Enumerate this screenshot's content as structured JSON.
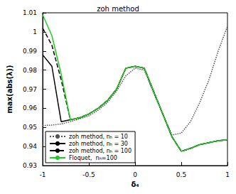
{
  "chart_data": {
    "type": "line",
    "title": "zoh method",
    "x_label": "δ₄",
    "y_label": "max(abs(λ))",
    "x": [
      -1,
      -0.9,
      -0.8,
      -0.7,
      -0.6,
      -0.5,
      -0.4,
      -0.3,
      -0.2,
      -0.1,
      0,
      0.1,
      0.2,
      0.3,
      0.4,
      0.5,
      0.6,
      0.7,
      0.8,
      0.9,
      1
    ],
    "series": [
      {
        "name": "zoh method, nₕ = 10",
        "color": "#555555",
        "line_style": "dotted",
        "values": [
          0.951,
          0.9512,
          0.9518,
          0.953,
          0.9545,
          0.956,
          0.959,
          0.963,
          0.969,
          0.977,
          0.981,
          0.98,
          0.968,
          0.957,
          0.946,
          0.947,
          0.953,
          0.963,
          0.975,
          0.99,
          1.003
        ]
      },
      {
        "name": "zoh method, nₕ = 30",
        "color": "#000000",
        "line_style": "solid",
        "values": [
          0.988,
          0.982,
          0.953,
          0.954,
          0.955,
          0.957,
          0.96,
          0.964,
          0.97,
          0.981,
          0.982,
          0.981,
          0.969,
          0.957,
          0.945,
          0.9375,
          0.939,
          0.941,
          0.942,
          0.943,
          0.9435
        ]
      },
      {
        "name": "zoh method, nₕ = 100",
        "color": "#000000",
        "line_style": "dashed",
        "values": [
          1.002,
          0.993,
          0.975,
          0.954,
          0.955,
          0.957,
          0.96,
          0.964,
          0.97,
          0.981,
          0.982,
          0.981,
          0.969,
          0.957,
          0.945,
          0.9375,
          0.939,
          0.941,
          0.942,
          0.943,
          0.9435
        ]
      },
      {
        "name": "Floquet,  nₕ=100",
        "color": "#22cc22",
        "line_style": "solid",
        "values": [
          1.009,
          0.998,
          0.978,
          0.954,
          0.955,
          0.957,
          0.96,
          0.964,
          0.97,
          0.981,
          0.982,
          0.981,
          0.969,
          0.957,
          0.945,
          0.9375,
          0.939,
          0.941,
          0.942,
          0.943,
          0.9435
        ]
      }
    ],
    "xlim": [
      -1,
      1
    ],
    "xticks": [
      -1,
      -0.5,
      0,
      0.5,
      1
    ],
    "ylim": [
      0.93,
      1.01
    ],
    "yticks": [
      0.93,
      0.94,
      0.95,
      0.96,
      0.97,
      0.98,
      0.99,
      1,
      1.01
    ],
    "grid": false,
    "legend": "lower left"
  }
}
